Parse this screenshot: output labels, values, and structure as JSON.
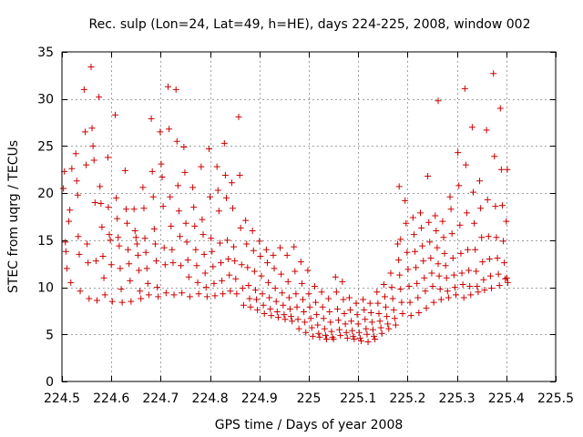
{
  "chart_data": {
    "type": "scatter",
    "title": "Rec. sulp (Lon=24, Lat=49, h=HE), days 224-225, 2008, window 002",
    "xlabel": "GPS time / Days of year 2008",
    "ylabel": "STEC from uqrg / TECUs",
    "xlim": [
      224.5,
      225.5
    ],
    "ylim": [
      0,
      35
    ],
    "grid": true,
    "marker": "plus",
    "color": "#cc0000",
    "xticks": [
      224.5,
      224.6,
      224.7,
      224.8,
      224.9,
      225.0,
      225.1,
      225.2,
      225.3,
      225.4,
      225.5
    ],
    "xtick_labels": [
      "224.5",
      "224.6",
      "224.7",
      "224.8",
      "224.9",
      "225",
      "225.1",
      "225.2",
      "225.3",
      "225.4",
      "225.5"
    ],
    "yticks": [
      0,
      5,
      10,
      15,
      20,
      25,
      30,
      35
    ],
    "ytick_labels": [
      "0",
      "5",
      "10",
      "15",
      "20",
      "25",
      "30",
      "35"
    ],
    "points": [
      [
        224.503,
        20.5
      ],
      [
        224.505,
        22.3
      ],
      [
        224.507,
        14.8
      ],
      [
        224.508,
        13.8
      ],
      [
        224.51,
        12.0
      ],
      [
        224.514,
        17.0
      ],
      [
        224.516,
        18.2
      ],
      [
        224.518,
        10.5
      ],
      [
        224.52,
        22.6
      ],
      [
        224.528,
        24.2
      ],
      [
        224.53,
        21.3
      ],
      [
        224.532,
        19.8
      ],
      [
        224.533,
        15.4
      ],
      [
        224.535,
        13.5
      ],
      [
        224.537,
        9.6
      ],
      [
        224.545,
        31.0
      ],
      [
        224.547,
        26.5
      ],
      [
        224.549,
        23.0
      ],
      [
        224.551,
        14.6
      ],
      [
        224.553,
        12.6
      ],
      [
        224.555,
        8.8
      ],
      [
        224.559,
        33.4
      ],
      [
        224.561,
        26.9
      ],
      [
        224.563,
        25.0
      ],
      [
        224.565,
        23.5
      ],
      [
        224.567,
        19.0
      ],
      [
        224.569,
        12.8
      ],
      [
        224.571,
        8.6
      ],
      [
        224.575,
        30.2
      ],
      [
        224.577,
        20.7
      ],
      [
        224.579,
        18.9
      ],
      [
        224.581,
        16.4
      ],
      [
        224.583,
        13.3
      ],
      [
        224.585,
        11.0
      ],
      [
        224.587,
        9.2
      ],
      [
        224.593,
        23.8
      ],
      [
        224.594,
        18.5
      ],
      [
        224.596,
        15.6
      ],
      [
        224.598,
        15.0
      ],
      [
        224.6,
        12.4
      ],
      [
        224.602,
        8.5
      ],
      [
        224.608,
        28.3
      ],
      [
        224.61,
        19.5
      ],
      [
        224.612,
        17.3
      ],
      [
        224.614,
        15.3
      ],
      [
        224.616,
        14.4
      ],
      [
        224.618,
        12.0
      ],
      [
        224.62,
        9.8
      ],
      [
        224.622,
        8.4
      ],
      [
        224.628,
        22.4
      ],
      [
        224.63,
        18.3
      ],
      [
        224.632,
        16.8
      ],
      [
        224.634,
        14.0
      ],
      [
        224.636,
        12.5
      ],
      [
        224.638,
        10.7
      ],
      [
        224.64,
        8.5
      ],
      [
        224.646,
        18.3
      ],
      [
        224.648,
        16.0
      ],
      [
        224.65,
        15.3
      ],
      [
        224.652,
        14.6
      ],
      [
        224.654,
        13.4
      ],
      [
        224.656,
        11.8
      ],
      [
        224.658,
        9.6
      ],
      [
        224.66,
        8.8
      ],
      [
        224.664,
        20.6
      ],
      [
        224.666,
        18.4
      ],
      [
        224.668,
        15.2
      ],
      [
        224.67,
        13.7
      ],
      [
        224.672,
        12.0
      ],
      [
        224.674,
        10.4
      ],
      [
        224.676,
        9.2
      ],
      [
        224.681,
        27.9
      ],
      [
        224.683,
        22.3
      ],
      [
        224.685,
        19.6
      ],
      [
        224.687,
        16.2
      ],
      [
        224.689,
        14.6
      ],
      [
        224.691,
        12.8
      ],
      [
        224.693,
        10.0
      ],
      [
        224.695,
        9.0
      ],
      [
        224.699,
        26.5
      ],
      [
        224.701,
        23.1
      ],
      [
        224.703,
        21.7
      ],
      [
        224.705,
        18.6
      ],
      [
        224.707,
        14.2
      ],
      [
        224.709,
        12.4
      ],
      [
        224.711,
        9.4
      ],
      [
        224.715,
        31.3
      ],
      [
        224.717,
        26.8
      ],
      [
        224.719,
        19.6
      ],
      [
        224.721,
        16.5
      ],
      [
        224.723,
        14.0
      ],
      [
        224.725,
        12.6
      ],
      [
        224.727,
        9.2
      ],
      [
        224.731,
        31.0
      ],
      [
        224.733,
        25.5
      ],
      [
        224.735,
        20.8
      ],
      [
        224.737,
        18.1
      ],
      [
        224.739,
        15.4
      ],
      [
        224.741,
        12.3
      ],
      [
        224.743,
        9.4
      ],
      [
        224.747,
        24.9
      ],
      [
        224.749,
        22.2
      ],
      [
        224.751,
        16.8
      ],
      [
        224.753,
        14.8
      ],
      [
        224.755,
        12.9
      ],
      [
        224.757,
        11.1
      ],
      [
        224.759,
        9.0
      ],
      [
        224.765,
        20.6
      ],
      [
        224.767,
        18.5
      ],
      [
        224.769,
        16.5
      ],
      [
        224.771,
        14.0
      ],
      [
        224.773,
        12.3
      ],
      [
        224.775,
        10.5
      ],
      [
        224.777,
        9.3
      ],
      [
        224.782,
        22.8
      ],
      [
        224.784,
        17.2
      ],
      [
        224.786,
        15.6
      ],
      [
        224.788,
        13.5
      ],
      [
        224.79,
        11.5
      ],
      [
        224.792,
        10.0
      ],
      [
        224.794,
        9.0
      ],
      [
        224.798,
        24.7
      ],
      [
        224.8,
        19.6
      ],
      [
        224.802,
        15.2
      ],
      [
        224.804,
        13.8
      ],
      [
        224.806,
        12.2
      ],
      [
        224.808,
        10.4
      ],
      [
        224.81,
        9.1
      ],
      [
        224.814,
        22.8
      ],
      [
        224.816,
        20.3
      ],
      [
        224.818,
        18.1
      ],
      [
        224.82,
        14.7
      ],
      [
        224.822,
        12.6
      ],
      [
        224.824,
        10.7
      ],
      [
        224.826,
        9.3
      ],
      [
        224.829,
        25.3
      ],
      [
        224.831,
        21.9
      ],
      [
        224.833,
        19.5
      ],
      [
        224.835,
        15.0
      ],
      [
        224.837,
        13.0
      ],
      [
        224.839,
        11.3
      ],
      [
        224.841,
        9.6
      ],
      [
        224.844,
        21.1
      ],
      [
        224.846,
        18.4
      ],
      [
        224.848,
        14.3
      ],
      [
        224.85,
        12.8
      ],
      [
        224.852,
        10.9
      ],
      [
        224.854,
        9.3
      ],
      [
        224.858,
        28.1
      ],
      [
        224.86,
        21.9
      ],
      [
        224.862,
        16.3
      ],
      [
        224.864,
        12.4
      ],
      [
        224.866,
        9.9
      ],
      [
        224.868,
        8.1
      ],
      [
        224.872,
        17.1
      ],
      [
        224.874,
        14.6
      ],
      [
        224.876,
        12.1
      ],
      [
        224.878,
        10.2
      ],
      [
        224.88,
        8.8
      ],
      [
        224.882,
        7.9
      ],
      [
        224.886,
        16.0
      ],
      [
        224.888,
        13.9
      ],
      [
        224.89,
        11.7
      ],
      [
        224.892,
        9.7
      ],
      [
        224.894,
        8.7
      ],
      [
        224.896,
        7.6
      ],
      [
        224.9,
        14.9
      ],
      [
        224.902,
        13.3
      ],
      [
        224.904,
        11.2
      ],
      [
        224.906,
        9.3
      ],
      [
        224.908,
        8.1
      ],
      [
        224.91,
        7.2
      ],
      [
        224.914,
        14.0
      ],
      [
        224.916,
        12.6
      ],
      [
        224.918,
        10.5
      ],
      [
        224.92,
        8.9
      ],
      [
        224.922,
        7.7
      ],
      [
        224.924,
        7.0
      ],
      [
        224.928,
        13.4
      ],
      [
        224.93,
        12.0
      ],
      [
        224.932,
        9.9
      ],
      [
        224.934,
        8.5
      ],
      [
        224.936,
        7.4
      ],
      [
        224.938,
        6.8
      ],
      [
        224.942,
        14.2
      ],
      [
        224.944,
        11.4
      ],
      [
        224.946,
        9.4
      ],
      [
        224.948,
        8.1
      ],
      [
        224.95,
        7.1
      ],
      [
        224.952,
        6.6
      ],
      [
        224.956,
        13.4
      ],
      [
        224.958,
        10.6
      ],
      [
        224.96,
        8.9
      ],
      [
        224.962,
        7.7
      ],
      [
        224.964,
        6.9
      ],
      [
        224.966,
        6.4
      ],
      [
        224.97,
        14.3
      ],
      [
        224.972,
        11.7
      ],
      [
        224.974,
        9.3
      ],
      [
        224.976,
        7.9
      ],
      [
        224.978,
        6.6
      ],
      [
        224.98,
        5.6
      ],
      [
        224.984,
        12.7
      ],
      [
        224.986,
        10.4
      ],
      [
        224.988,
        8.7
      ],
      [
        224.99,
        7.4
      ],
      [
        224.992,
        6.3
      ],
      [
        224.994,
        5.2
      ],
      [
        224.998,
        11.8
      ],
      [
        225.0,
        9.3
      ],
      [
        225.002,
        7.9
      ],
      [
        225.004,
        6.7
      ],
      [
        225.006,
        5.7
      ],
      [
        225.008,
        4.8
      ],
      [
        225.012,
        10.1
      ],
      [
        225.014,
        8.4
      ],
      [
        225.016,
        7.1
      ],
      [
        225.018,
        6.0
      ],
      [
        225.02,
        5.1
      ],
      [
        225.022,
        4.7
      ],
      [
        225.026,
        9.5
      ],
      [
        225.028,
        7.9
      ],
      [
        225.03,
        6.7
      ],
      [
        225.032,
        5.6
      ],
      [
        225.034,
        4.9
      ],
      [
        225.036,
        4.5
      ],
      [
        225.04,
        8.8
      ],
      [
        225.042,
        7.4
      ],
      [
        225.044,
        6.3
      ],
      [
        225.046,
        5.3
      ],
      [
        225.048,
        4.7
      ],
      [
        225.05,
        4.5
      ],
      [
        225.054,
        11.1
      ],
      [
        225.056,
        9.5
      ],
      [
        225.058,
        7.7
      ],
      [
        225.06,
        6.5
      ],
      [
        225.062,
        5.5
      ],
      [
        225.064,
        4.9
      ],
      [
        225.068,
        10.6
      ],
      [
        225.07,
        8.7
      ],
      [
        225.072,
        7.2
      ],
      [
        225.074,
        6.1
      ],
      [
        225.076,
        5.2
      ],
      [
        225.078,
        4.6
      ],
      [
        225.082,
        8.9
      ],
      [
        225.084,
        7.6
      ],
      [
        225.086,
        6.4
      ],
      [
        225.088,
        5.4
      ],
      [
        225.09,
        4.8
      ],
      [
        225.092,
        4.5
      ],
      [
        225.096,
        8.3
      ],
      [
        225.098,
        7.1
      ],
      [
        225.1,
        6.1
      ],
      [
        225.102,
        5.2
      ],
      [
        225.104,
        4.6
      ],
      [
        225.106,
        4.3
      ],
      [
        225.11,
        8.7
      ],
      [
        225.112,
        7.6
      ],
      [
        225.114,
        6.6
      ],
      [
        225.116,
        5.6
      ],
      [
        225.118,
        5.0
      ],
      [
        225.12,
        4.2
      ],
      [
        225.124,
        8.3
      ],
      [
        225.126,
        7.3
      ],
      [
        225.128,
        6.3
      ],
      [
        225.13,
        5.5
      ],
      [
        225.132,
        4.8
      ],
      [
        225.134,
        4.5
      ],
      [
        225.138,
        9.5
      ],
      [
        225.14,
        8.3
      ],
      [
        225.142,
        7.2
      ],
      [
        225.144,
        6.4
      ],
      [
        225.146,
        5.7
      ],
      [
        225.148,
        5.1
      ],
      [
        225.152,
        10.3
      ],
      [
        225.154,
        9.0
      ],
      [
        225.156,
        7.9
      ],
      [
        225.158,
        6.9
      ],
      [
        225.16,
        6.1
      ],
      [
        225.162,
        5.6
      ],
      [
        225.166,
        11.5
      ],
      [
        225.168,
        10.0
      ],
      [
        225.17,
        8.8
      ],
      [
        225.172,
        7.6
      ],
      [
        225.174,
        6.7
      ],
      [
        225.176,
        6.0
      ],
      [
        225.18,
        14.6
      ],
      [
        225.182,
        12.9
      ],
      [
        225.184,
        11.3
      ],
      [
        225.186,
        9.8
      ],
      [
        225.188,
        8.4
      ],
      [
        225.19,
        7.2
      ],
      [
        225.183,
        20.7
      ],
      [
        225.186,
        15.1
      ],
      [
        225.195,
        19.2
      ],
      [
        225.197,
        16.8
      ],
      [
        225.199,
        13.7
      ],
      [
        225.201,
        11.9
      ],
      [
        225.203,
        10.1
      ],
      [
        225.205,
        8.4
      ],
      [
        225.207,
        7.0
      ],
      [
        225.211,
        17.4
      ],
      [
        225.213,
        15.6
      ],
      [
        225.215,
        13.8
      ],
      [
        225.217,
        12.1
      ],
      [
        225.219,
        10.4
      ],
      [
        225.221,
        8.9
      ],
      [
        225.223,
        7.3
      ],
      [
        225.226,
        17.9
      ],
      [
        225.228,
        16.3
      ],
      [
        225.23,
        14.4
      ],
      [
        225.232,
        12.8
      ],
      [
        225.234,
        11.0
      ],
      [
        225.236,
        9.6
      ],
      [
        225.238,
        7.8
      ],
      [
        225.241,
        21.8
      ],
      [
        225.243,
        16.9
      ],
      [
        225.245,
        14.8
      ],
      [
        225.247,
        13.1
      ],
      [
        225.249,
        11.5
      ],
      [
        225.251,
        10.1
      ],
      [
        225.253,
        8.4
      ],
      [
        225.256,
        17.6
      ],
      [
        225.258,
        16.0
      ],
      [
        225.26,
        14.2
      ],
      [
        225.262,
        12.5
      ],
      [
        225.264,
        11.2
      ],
      [
        225.266,
        9.8
      ],
      [
        225.268,
        8.7
      ],
      [
        225.262,
        29.8
      ],
      [
        225.271,
        17.0
      ],
      [
        225.273,
        15.3
      ],
      [
        225.275,
        13.6
      ],
      [
        225.277,
        12.3
      ],
      [
        225.279,
        11.0
      ],
      [
        225.281,
        9.6
      ],
      [
        225.283,
        8.9
      ],
      [
        225.286,
        19.6
      ],
      [
        225.288,
        18.3
      ],
      [
        225.29,
        15.7
      ],
      [
        225.292,
        13.1
      ],
      [
        225.294,
        11.3
      ],
      [
        225.296,
        10.0
      ],
      [
        225.298,
        9.2
      ],
      [
        225.302,
        24.3
      ],
      [
        225.304,
        20.8
      ],
      [
        225.306,
        16.6
      ],
      [
        225.308,
        13.6
      ],
      [
        225.31,
        11.5
      ],
      [
        225.312,
        10.3
      ],
      [
        225.314,
        8.9
      ],
      [
        225.316,
        31.1
      ],
      [
        225.318,
        23.0
      ],
      [
        225.32,
        17.9
      ],
      [
        225.322,
        14.0
      ],
      [
        225.324,
        11.8
      ],
      [
        225.326,
        10.1
      ],
      [
        225.328,
        9.2
      ],
      [
        225.331,
        27.0
      ],
      [
        225.333,
        20.1
      ],
      [
        225.335,
        16.8
      ],
      [
        225.337,
        14.0
      ],
      [
        225.339,
        11.7
      ],
      [
        225.341,
        10.1
      ],
      [
        225.343,
        9.5
      ],
      [
        225.346,
        21.3
      ],
      [
        225.348,
        18.4
      ],
      [
        225.35,
        15.3
      ],
      [
        225.352,
        12.7
      ],
      [
        225.354,
        10.8
      ],
      [
        225.356,
        9.7
      ],
      [
        225.36,
        26.7
      ],
      [
        225.362,
        19.3
      ],
      [
        225.364,
        15.4
      ],
      [
        225.366,
        13.0
      ],
      [
        225.368,
        11.2
      ],
      [
        225.37,
        9.9
      ],
      [
        225.374,
        32.7
      ],
      [
        225.376,
        23.9
      ],
      [
        225.378,
        18.6
      ],
      [
        225.38,
        15.3
      ],
      [
        225.382,
        13.1
      ],
      [
        225.384,
        11.4
      ],
      [
        225.386,
        10.2
      ],
      [
        225.388,
        29.0
      ],
      [
        225.39,
        22.5
      ],
      [
        225.392,
        18.7
      ],
      [
        225.394,
        14.9
      ],
      [
        225.396,
        12.6
      ],
      [
        225.398,
        10.9
      ],
      [
        225.4,
        17.0
      ],
      [
        225.401,
        11.0
      ],
      [
        225.402,
        22.5
      ],
      [
        225.403,
        10.5
      ]
    ]
  }
}
